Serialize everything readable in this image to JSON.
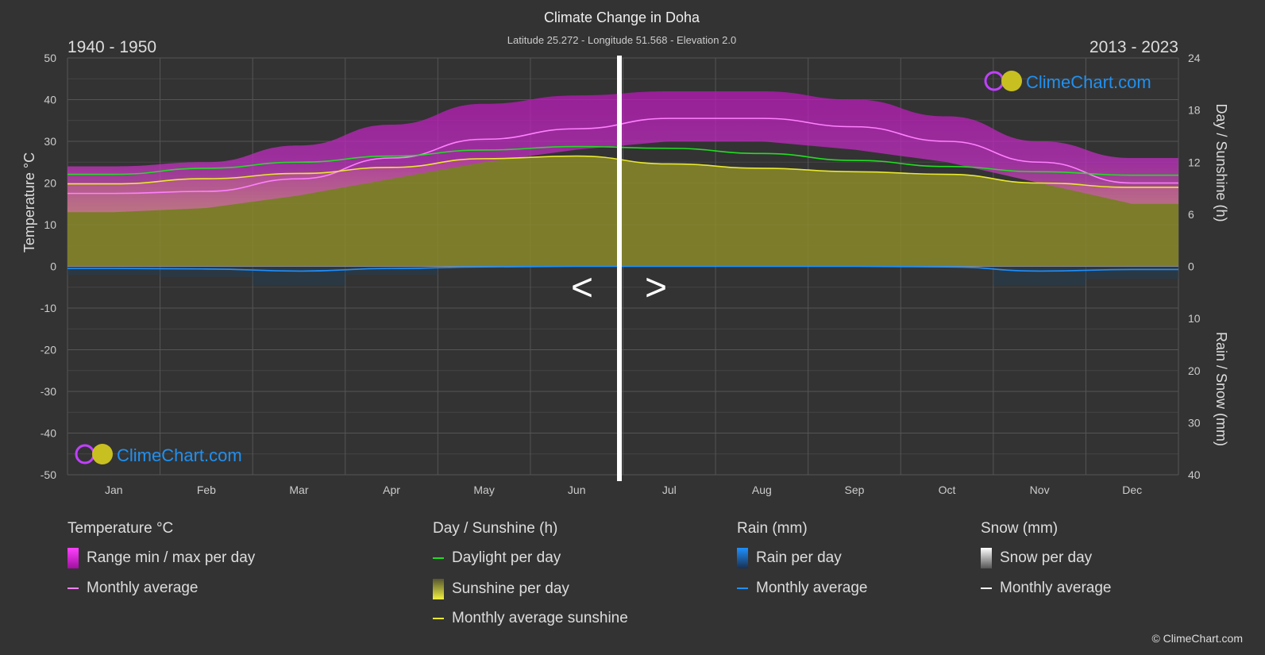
{
  "chart_data": {
    "type": "line",
    "title": "Climate Change in Doha",
    "subtitle": "Latitude 25.272 - Longitude 51.568 - Elevation 2.0",
    "period_left": "1940 - 1950",
    "period_right": "2013 - 2023",
    "categories": [
      "Jan",
      "Feb",
      "Mar",
      "Apr",
      "May",
      "Jun",
      "Jul",
      "Aug",
      "Sep",
      "Oct",
      "Nov",
      "Dec"
    ],
    "y_left": {
      "label": "Temperature °C",
      "range": [
        -50,
        50
      ],
      "ticks": [
        50,
        40,
        30,
        20,
        10,
        0,
        -10,
        -20,
        -30,
        -40,
        -50
      ]
    },
    "y_right_top": {
      "label": "Day / Sunshine (h)",
      "range": [
        0,
        24
      ],
      "ticks": [
        24,
        18,
        12,
        6,
        0
      ]
    },
    "y_right_bottom": {
      "label": "Rain / Snow (mm)",
      "range": [
        0,
        40
      ],
      "ticks": [
        10,
        20,
        30,
        40
      ]
    },
    "grid": true,
    "series": [
      {
        "name": "Monthly average",
        "group": "Temperature °C",
        "unit": "°C",
        "color": "#ff80ff",
        "values": [
          17.5,
          18,
          21,
          26,
          30.5,
          33,
          35.5,
          35.5,
          33.5,
          30,
          25,
          20
        ]
      },
      {
        "name": "Range min / max per day",
        "group": "Temperature °C",
        "unit": "°C",
        "color": "#d020d0",
        "min": [
          13,
          14,
          17,
          21,
          25,
          28,
          30,
          30,
          28,
          25,
          20,
          15
        ],
        "max": [
          24,
          25,
          29,
          34,
          39,
          41,
          42,
          42,
          40,
          36,
          30,
          26
        ]
      },
      {
        "name": "Daylight per day",
        "unit": "h",
        "color": "#22dd22",
        "values": [
          10.6,
          11.3,
          12,
          12.7,
          13.4,
          13.8,
          13.6,
          13,
          12.2,
          11.5,
          10.9,
          10.5
        ]
      },
      {
        "name": "Monthly average sunshine",
        "unit": "h",
        "color": "#e8e830",
        "values": [
          9.5,
          10.1,
          10.7,
          11.4,
          12.4,
          12.7,
          11.8,
          11.3,
          10.9,
          10.6,
          9.6,
          9.1
        ]
      },
      {
        "name": "Monthly average",
        "group": "Rain (mm)",
        "unit": "mm",
        "color": "#1e90ff",
        "values": [
          0.4,
          0.5,
          0.9,
          0.4,
          0.1,
          0,
          0,
          0,
          0,
          0.1,
          0.9,
          0.6
        ]
      }
    ],
    "nav": {
      "prev": "<",
      "next": ">"
    }
  },
  "logo": "ClimeChart.com",
  "legend": {
    "temp": {
      "title": "Temperature °C",
      "range": "Range min / max per day",
      "avg": "Monthly average"
    },
    "sun": {
      "title": "Day / Sunshine (h)",
      "daylight": "Daylight per day",
      "sunshine": "Sunshine per day",
      "avg": "Monthly average sunshine"
    },
    "rain": {
      "title": "Rain (mm)",
      "perday": "Rain per day",
      "avg": "Monthly average"
    },
    "snow": {
      "title": "Snow (mm)",
      "perday": "Snow per day",
      "avg": "Monthly average"
    }
  },
  "copyright": "© ClimeChart.com"
}
